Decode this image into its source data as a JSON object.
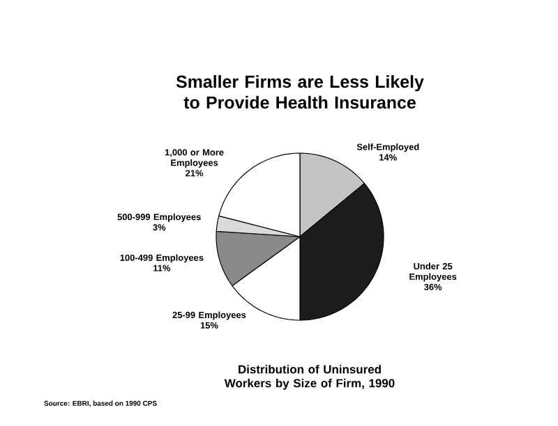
{
  "chart_data": {
    "type": "pie",
    "title": "Smaller Firms are Less Likely to Provide Health Insurance",
    "subtitle": "Distribution of Uninsured Workers by Size of Firm, 1990",
    "categories": [
      "Self-Employed",
      "Under 25 Employees",
      "25-99 Employees",
      "100-499 Employees",
      "500-999 Employees",
      "1,000 or More Employees"
    ],
    "values": [
      14,
      36,
      15,
      11,
      3,
      21
    ],
    "value_labels": [
      "14%",
      "36%",
      "15%",
      "11%",
      "3%",
      "21%"
    ],
    "colors": [
      "#c4c4c4",
      "#1c1c1c",
      "#ffffff",
      "#8a8a8a",
      "#dadada",
      "#ffffff"
    ],
    "annotations": [
      "Source: EBRI, based on 1990 CPS"
    ]
  }
}
